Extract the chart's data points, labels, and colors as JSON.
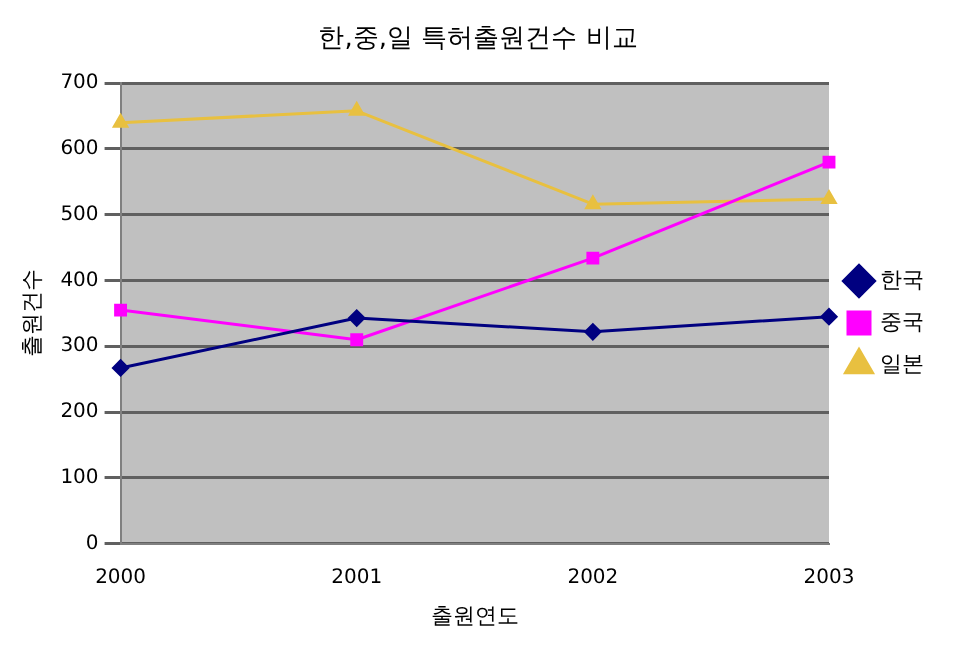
{
  "chart_data": {
    "type": "line",
    "title": "한,중,일 특허출원건수 비교",
    "xlabel": "출원연도",
    "ylabel": "출원건수",
    "categories": [
      "2000",
      "2001",
      "2002",
      "2003"
    ],
    "series": [
      {
        "name": "한국",
        "color": "#000080",
        "marker": "diamond",
        "values": [
          267,
          343,
          322,
          345
        ]
      },
      {
        "name": "중국",
        "color": "#ff00ff",
        "marker": "square",
        "values": [
          355,
          310,
          434,
          580
        ]
      },
      {
        "name": "일본",
        "color": "#e8c040",
        "marker": "triangle",
        "values": [
          640,
          658,
          516,
          524
        ]
      }
    ],
    "ylim": [
      0,
      700
    ],
    "yticks": [
      0,
      100,
      200,
      300,
      400,
      500,
      600,
      700
    ],
    "grid": "y",
    "legend": "right",
    "line_style": "solid"
  }
}
